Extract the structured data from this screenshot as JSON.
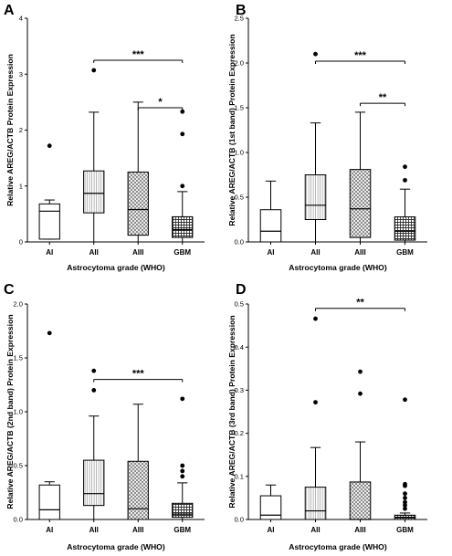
{
  "chart_data": [
    {
      "panel_label": "A",
      "type": "box",
      "ylabel": "Relative AREG/ACTB Protein Expression",
      "xlabel": "Astrocytoma grade (WHO)",
      "categories": [
        "AI",
        "AII",
        "AIII",
        "GBM"
      ],
      "ylim": [
        0,
        4
      ],
      "yticks": [
        "0",
        "1",
        "2",
        "3",
        "4"
      ],
      "yticks_values": [
        0,
        1,
        2,
        3,
        4
      ],
      "boxes": [
        {
          "category": "AI",
          "min": 0.05,
          "q1": 0.05,
          "median": 0.55,
          "q3": 0.68,
          "max": 0.75,
          "outliers": [
            1.72
          ],
          "pattern": "none"
        },
        {
          "category": "AII",
          "min": 0.0,
          "q1": 0.52,
          "median": 0.87,
          "q3": 1.27,
          "max": 2.32,
          "outliers": [
            3.07
          ],
          "pattern": "vlines"
        },
        {
          "category": "AIII",
          "min": 0.0,
          "q1": 0.12,
          "median": 0.58,
          "q3": 1.25,
          "max": 2.5,
          "outliers": [],
          "pattern": "xhatch"
        },
        {
          "category": "GBM",
          "min": 0.0,
          "q1": 0.08,
          "median": 0.22,
          "q3": 0.45,
          "max": 0.9,
          "outliers": [
            1.0,
            1.93,
            2.33
          ],
          "pattern": "grid"
        }
      ],
      "significance": [
        {
          "from": "AII",
          "to": "GBM",
          "label": "***",
          "y": 3.25
        },
        {
          "from": "AIII",
          "to": "GBM",
          "label": "*",
          "y": 2.4
        }
      ]
    },
    {
      "panel_label": "B",
      "type": "box",
      "ylabel": "Relative AREG/ACTB (1st band) Protein Expression",
      "xlabel": "Astrocytoma grade (WHO)",
      "categories": [
        "AI",
        "AII",
        "AIII",
        "GBM"
      ],
      "ylim": [
        0,
        2.5
      ],
      "yticks": [
        "0.0",
        "0.5",
        "1.0",
        "1.5",
        "2.0",
        "2.5"
      ],
      "yticks_values": [
        0,
        0.5,
        1.0,
        1.5,
        2.0,
        2.5
      ],
      "boxes": [
        {
          "category": "AI",
          "min": 0.0,
          "q1": 0.0,
          "median": 0.12,
          "q3": 0.36,
          "max": 0.68,
          "outliers": [],
          "pattern": "none"
        },
        {
          "category": "AII",
          "min": 0.0,
          "q1": 0.25,
          "median": 0.41,
          "q3": 0.75,
          "max": 1.33,
          "outliers": [
            2.1
          ],
          "pattern": "vlines"
        },
        {
          "category": "AIII",
          "min": 0.0,
          "q1": 0.05,
          "median": 0.37,
          "q3": 0.81,
          "max": 1.45,
          "outliers": [],
          "pattern": "xhatch"
        },
        {
          "category": "GBM",
          "min": 0.0,
          "q1": 0.02,
          "median": 0.12,
          "q3": 0.28,
          "max": 0.59,
          "outliers": [
            0.69,
            0.84
          ],
          "pattern": "grid"
        }
      ],
      "significance": [
        {
          "from": "AII",
          "to": "GBM",
          "label": "***",
          "y": 2.02
        },
        {
          "from": "AIII",
          "to": "GBM",
          "label": "**",
          "y": 1.55
        }
      ]
    },
    {
      "panel_label": "C",
      "type": "box",
      "ylabel": "Relative AREG/ACTB (2nd band) Protein Expression",
      "xlabel": "Astrocytoma grade (WHO)",
      "categories": [
        "AI",
        "AII",
        "AIII",
        "GBM"
      ],
      "ylim": [
        0,
        2.0
      ],
      "yticks": [
        "0.0",
        "0.5",
        "1.0",
        "1.5",
        "2.0"
      ],
      "yticks_values": [
        0,
        0.5,
        1.0,
        1.5,
        2.0
      ],
      "boxes": [
        {
          "category": "AI",
          "min": 0.0,
          "q1": 0.0,
          "median": 0.09,
          "q3": 0.32,
          "max": 0.35,
          "outliers": [
            1.73
          ],
          "pattern": "none"
        },
        {
          "category": "AII",
          "min": 0.0,
          "q1": 0.13,
          "median": 0.24,
          "q3": 0.55,
          "max": 0.96,
          "outliers": [
            1.2,
            1.38
          ],
          "pattern": "vlines"
        },
        {
          "category": "AIII",
          "min": 0.0,
          "q1": 0.0,
          "median": 0.1,
          "q3": 0.54,
          "max": 1.07,
          "outliers": [],
          "pattern": "xhatch"
        },
        {
          "category": "GBM",
          "min": 0.0,
          "q1": 0.02,
          "median": 0.05,
          "q3": 0.15,
          "max": 0.34,
          "outliers": [
            0.4,
            0.45,
            0.5,
            1.12
          ],
          "pattern": "grid"
        }
      ],
      "significance": [
        {
          "from": "AII",
          "to": "GBM",
          "label": "***",
          "y": 1.3
        }
      ]
    },
    {
      "panel_label": "D",
      "type": "box",
      "ylabel": "Relative AREG/ACTB (3rd band) Protein Expression",
      "xlabel": "Astrocytoma grade (WHO)",
      "categories": [
        "AI",
        "AII",
        "AIII",
        "GBM"
      ],
      "ylim": [
        0,
        0.5
      ],
      "yticks": [
        "0.0",
        "0.1",
        "0.2",
        "0.3",
        "0.4",
        "0.5"
      ],
      "yticks_values": [
        0,
        0.1,
        0.2,
        0.3,
        0.4,
        0.5
      ],
      "boxes": [
        {
          "category": "AI",
          "min": 0.0,
          "q1": 0.0,
          "median": 0.01,
          "q3": 0.055,
          "max": 0.08,
          "outliers": [],
          "pattern": "none"
        },
        {
          "category": "AII",
          "min": 0.0,
          "q1": 0.0,
          "median": 0.02,
          "q3": 0.075,
          "max": 0.167,
          "outliers": [
            0.272,
            0.466
          ],
          "pattern": "vlines"
        },
        {
          "category": "AIII",
          "min": 0.0,
          "q1": 0.0,
          "median": 0.0,
          "q3": 0.087,
          "max": 0.18,
          "outliers": [
            0.292,
            0.343
          ],
          "pattern": "xhatch"
        },
        {
          "category": "GBM",
          "min": 0.0,
          "q1": 0.0,
          "median": 0.005,
          "q3": 0.01,
          "max": 0.015,
          "outliers": [
            0.025,
            0.033,
            0.04,
            0.05,
            0.06,
            0.078,
            0.082,
            0.278
          ],
          "pattern": "grid"
        }
      ],
      "significance": [
        {
          "from": "AII",
          "to": "GBM",
          "label": "**",
          "y": 0.49
        }
      ]
    }
  ]
}
